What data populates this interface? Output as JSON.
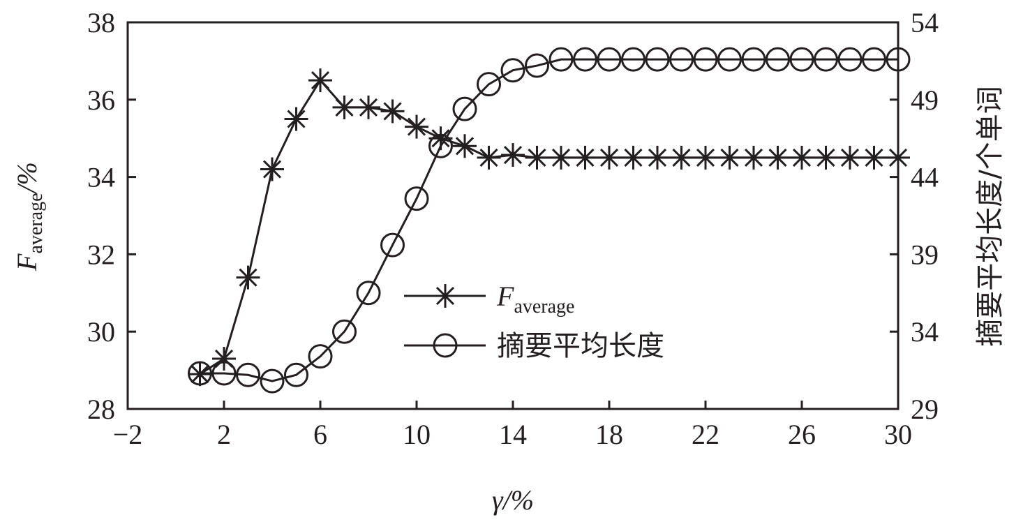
{
  "chart_data": {
    "type": "line",
    "xlabel": "γ/%",
    "ylabel_left": "F",
    "ylabel_left_sub": "average",
    "ylabel_left_unit": "/%",
    "ylabel_right": "摘要平均长度/个单词",
    "xlim": [
      -2,
      30
    ],
    "ylim_left": [
      28,
      38
    ],
    "ylim_right": [
      29,
      54
    ],
    "xticks": [
      -2,
      2,
      6,
      10,
      14,
      18,
      22,
      26,
      30
    ],
    "yticks_left": [
      28,
      30,
      32,
      34,
      36,
      38
    ],
    "yticks_right": [
      29,
      34,
      39,
      44,
      49,
      54
    ],
    "grid": false,
    "legend_placement": "center",
    "x": [
      1,
      2,
      3,
      4,
      5,
      6,
      7,
      8,
      9,
      10,
      11,
      12,
      13,
      14,
      15,
      16,
      17,
      18,
      19,
      20,
      21,
      22,
      23,
      24,
      25,
      26,
      27,
      28,
      29,
      30
    ],
    "series": [
      {
        "name": "F",
        "name_sub": "average",
        "axis": "left",
        "marker": "asterisk",
        "values": [
          28.9,
          29.3,
          31.4,
          34.2,
          35.5,
          36.5,
          35.8,
          35.8,
          35.7,
          35.3,
          35.0,
          34.8,
          34.5,
          34.57,
          34.5,
          34.5,
          34.5,
          34.5,
          34.5,
          34.5,
          34.5,
          34.5,
          34.5,
          34.5,
          34.5,
          34.5,
          34.5,
          34.5,
          34.5,
          34.5
        ]
      },
      {
        "name": "摘要平均长度",
        "axis": "right",
        "marker": "circle",
        "values": [
          31.3,
          31.3,
          31.2,
          30.8,
          31.2,
          32.4,
          34.0,
          36.5,
          39.6,
          42.6,
          46.0,
          48.4,
          50.0,
          50.9,
          51.2,
          51.6,
          51.6,
          51.6,
          51.6,
          51.6,
          51.6,
          51.6,
          51.6,
          51.6,
          51.6,
          51.6,
          51.6,
          51.6,
          51.6,
          51.6
        ]
      }
    ],
    "colors": {
      "ink": "#231f20"
    }
  }
}
